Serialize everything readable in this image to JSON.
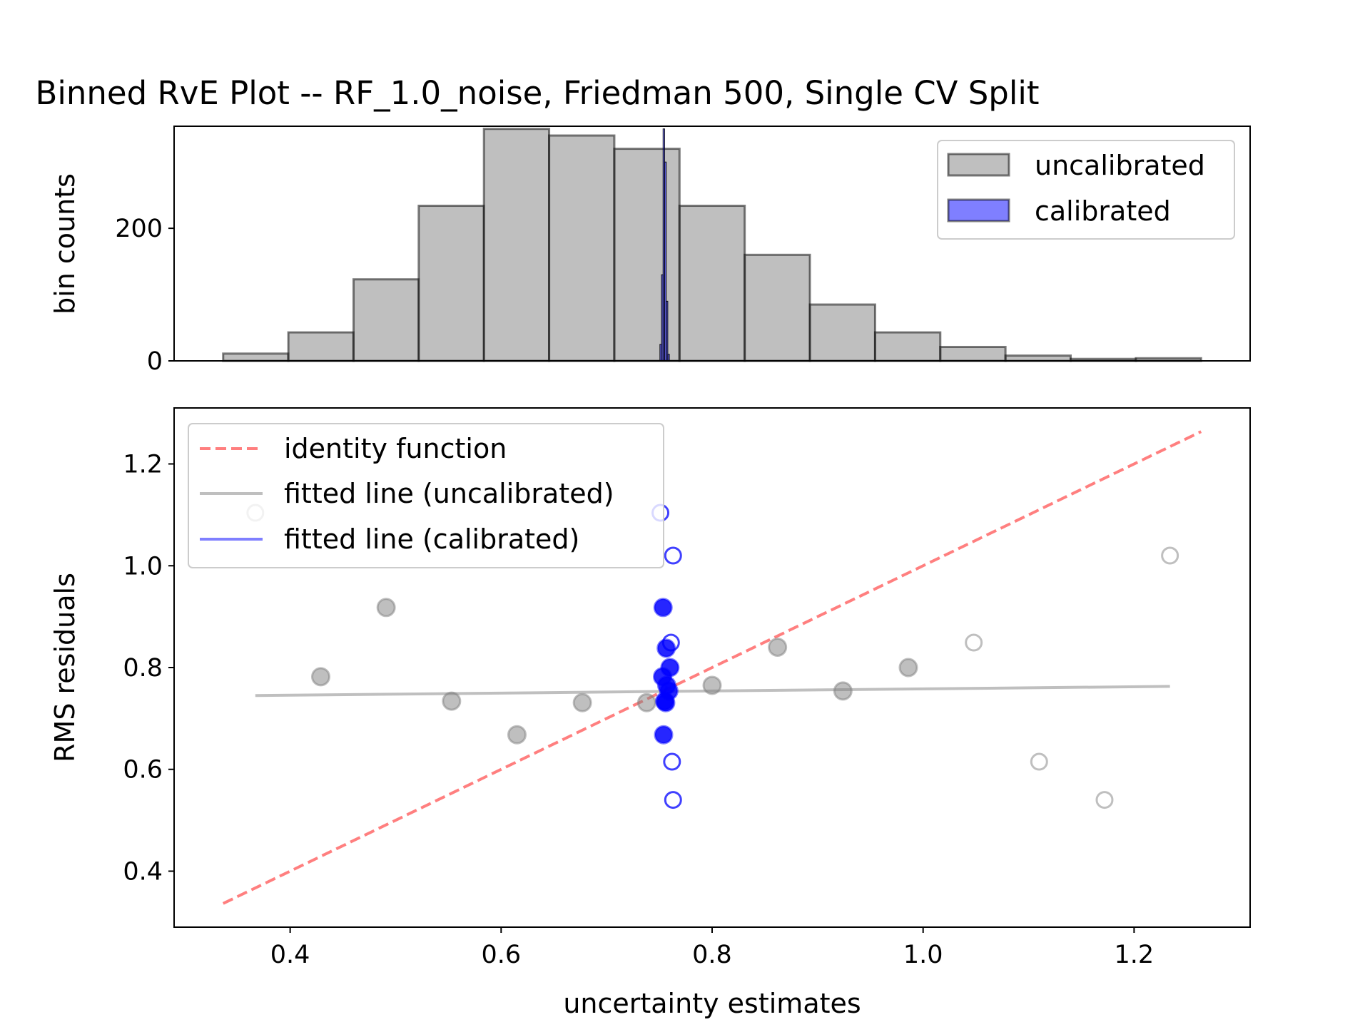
{
  "chart_data": [
    {
      "type": "bar",
      "title": "Binned RvE Plot -- RF_1.0_noise, Friedman 500, Single CV Split",
      "xlabel": "",
      "ylabel": "bin counts",
      "xlim": [
        0.29,
        1.31
      ],
      "ylim": [
        0,
        354
      ],
      "yticks": [
        0,
        200
      ],
      "ytick_labels": [
        "0",
        "200"
      ],
      "legend_position": "upper right",
      "series": [
        {
          "name": "uncalibrated",
          "color": "#808080",
          "bin_edges": [
            0.3365,
            0.3983,
            0.4601,
            0.5219,
            0.5837,
            0.6455,
            0.7073,
            0.7691,
            0.8309,
            0.8927,
            0.9545,
            1.0163,
            1.0781,
            1.1399,
            1.2017,
            1.2635
          ],
          "values": [
            11,
            43,
            123,
            234,
            350,
            340,
            320,
            234,
            160,
            85,
            43,
            21,
            8,
            3,
            4
          ]
        },
        {
          "name": "calibrated",
          "color": "#0000ff",
          "bin_edges": [
            0.7505,
            0.752,
            0.7535,
            0.755,
            0.7565,
            0.758,
            0.7595
          ],
          "values": [
            25,
            130,
            350,
            300,
            90,
            10
          ]
        }
      ]
    },
    {
      "type": "scatter",
      "title": "",
      "xlabel": "uncertainty estimates",
      "ylabel": "RMS residuals",
      "xlim": [
        0.29,
        1.31
      ],
      "ylim": [
        0.29,
        1.31
      ],
      "xticks": [
        0.4,
        0.6,
        0.8,
        1.0,
        1.2
      ],
      "xtick_labels": [
        "0.4",
        "0.6",
        "0.8",
        "1.0",
        "1.2"
      ],
      "yticks": [
        0.4,
        0.6,
        0.8,
        1.0,
        1.2
      ],
      "ytick_labels": [
        "0.4",
        "0.6",
        "0.8",
        "1.0",
        "1.2"
      ],
      "legend_position": "upper left",
      "lines": [
        {
          "name": "identity function",
          "color": "#ff0000",
          "style": "dashed",
          "x": [
            0.3365,
            1.2635
          ],
          "y": [
            0.3365,
            1.2635
          ]
        },
        {
          "name": "fitted line (uncalibrated)",
          "color": "#808080",
          "style": "solid",
          "x": [
            0.367,
            1.234
          ],
          "y": [
            0.745,
            0.763
          ]
        },
        {
          "name": "fitted line (calibrated)",
          "color": "#0000ff",
          "style": "solid",
          "x": [
            0.7535,
            0.7575
          ],
          "y": [
            0.745,
            0.763
          ]
        }
      ],
      "points": {
        "uncalibrated": {
          "color": "#808080",
          "filled": [
            [
              0.429,
              0.782
            ],
            [
              0.491,
              0.918
            ],
            [
              0.553,
              0.734
            ],
            [
              0.615,
              0.668
            ],
            [
              0.677,
              0.731
            ],
            [
              0.738,
              0.731
            ],
            [
              0.8,
              0.765
            ],
            [
              0.862,
              0.84
            ],
            [
              0.924,
              0.754
            ],
            [
              0.986,
              0.8
            ]
          ],
          "hollow": [
            [
              0.367,
              1.104
            ],
            [
              1.048,
              0.849
            ],
            [
              1.11,
              0.615
            ],
            [
              1.172,
              0.54
            ],
            [
              1.234,
              1.02
            ]
          ]
        },
        "calibrated": {
          "color": "#0000ff",
          "filled": [
            [
              0.7535,
              0.918
            ],
            [
              0.7565,
              0.838
            ],
            [
              0.76,
              0.8
            ],
            [
              0.753,
              0.782
            ],
            [
              0.757,
              0.765
            ],
            [
              0.759,
              0.754
            ],
            [
              0.755,
              0.734
            ],
            [
              0.756,
              0.731
            ],
            [
              0.754,
              0.668
            ]
          ],
          "hollow": [
            [
              0.751,
              1.104
            ],
            [
              0.763,
              1.02
            ],
            [
              0.761,
              0.849
            ],
            [
              0.762,
              0.615
            ],
            [
              0.763,
              0.54
            ]
          ]
        }
      }
    }
  ]
}
